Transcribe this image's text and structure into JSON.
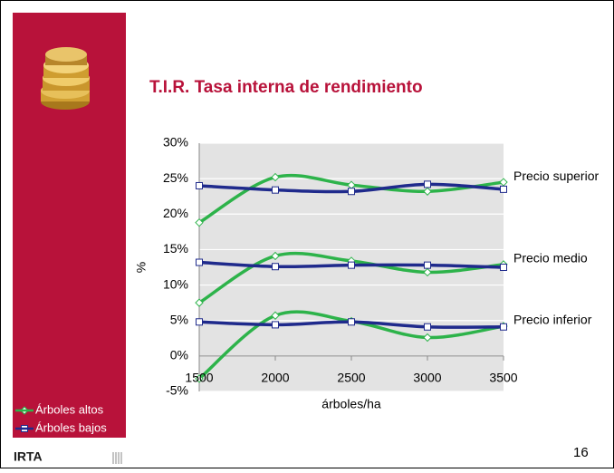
{
  "chart_data": {
    "type": "line",
    "title": "T.I.R. Tasa interna de rendimiento",
    "x_label": "árboles/ha",
    "y_label": "%",
    "x": [
      1500,
      2000,
      2500,
      3000,
      3500
    ],
    "xlim": [
      1500,
      3500
    ],
    "xticks": [
      1500,
      2000,
      2500,
      3000,
      3500
    ],
    "ylim": [
      -5,
      30
    ],
    "yticks": [
      {
        "value": -5,
        "label": "-5%"
      },
      {
        "value": 0,
        "label": "0%"
      },
      {
        "value": 5,
        "label": "5%"
      },
      {
        "value": 10,
        "label": "10%"
      },
      {
        "value": 15,
        "label": "15%"
      },
      {
        "value": 20,
        "label": "20%"
      },
      {
        "value": 25,
        "label": "25%"
      },
      {
        "value": 30,
        "label": "30%"
      }
    ],
    "grid": true,
    "levels": [
      "Precio superior",
      "Precio medio",
      "Precio inferior"
    ],
    "series": [
      {
        "name": "Árboles altos",
        "color": "#2db34a",
        "marker": "diamond",
        "values": [
          [
            18.8,
            25.2,
            24.1,
            23.2,
            24.5
          ],
          [
            7.5,
            14.1,
            13.4,
            11.8,
            12.9
          ],
          [
            -3.2,
            5.7,
            4.9,
            2.6,
            4.2
          ]
        ]
      },
      {
        "name": "Árboles bajos",
        "color": "#1f2a8c",
        "marker": "square",
        "values": [
          [
            24,
            23.4,
            23.2,
            24.2,
            23.5
          ],
          [
            13.2,
            12.6,
            12.8,
            12.8,
            12.5
          ],
          [
            4.8,
            4.4,
            4.8,
            4.1,
            4.1
          ]
        ]
      }
    ]
  },
  "slide": {
    "logo": "IRTA",
    "page_number": "16"
  }
}
